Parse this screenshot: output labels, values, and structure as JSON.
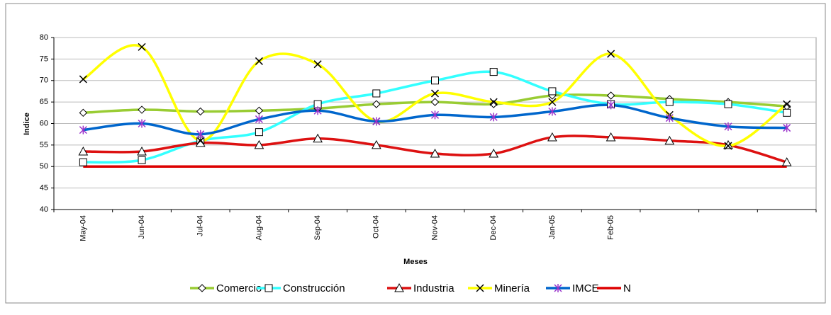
{
  "chart_data": {
    "type": "line",
    "x_label": "Meses",
    "y_label": "Indice",
    "categories": [
      "May-04",
      "Jun-04",
      "Jul-04",
      "Aug-04",
      "Sep-04",
      "Oct-04",
      "Nov-04",
      "Dec-04",
      "Jan-05",
      "Feb-05",
      null,
      null,
      null
    ],
    "ylim": [
      40,
      80
    ],
    "yticks": [
      40,
      45,
      50,
      55,
      60,
      65,
      70,
      75,
      80
    ],
    "grid": true,
    "legend": "bottom",
    "series": [
      {
        "name": "Comercio",
        "color": "#99cc33",
        "marker": "diamond",
        "values": [
          62.5,
          63.2,
          62.8,
          63,
          63.5,
          64.5,
          65,
          64.5,
          66.5,
          66.5,
          65.7,
          65,
          64
        ]
      },
      {
        "name": "Construcción",
        "color": "#33ffff",
        "marker": "square",
        "values": [
          51,
          51.5,
          56,
          58,
          64.5,
          67,
          70,
          72,
          67.5,
          64.5,
          65,
          64.5,
          62.5
        ]
      },
      {
        "name": "Industria",
        "color": "#dd1111",
        "marker": "triangle",
        "values": [
          53.5,
          53.5,
          55.5,
          55,
          56.5,
          55,
          53,
          53,
          56.8,
          56.8,
          56,
          55,
          51
        ]
      },
      {
        "name": "Minería",
        "color": "#ffff00",
        "marker": "x",
        "values": [
          70.3,
          77.8,
          56,
          74.5,
          73.8,
          60.5,
          67,
          65,
          65,
          76.2,
          62,
          54.8,
          64.5
        ]
      },
      {
        "name": "IMCE",
        "color": "#0066cc",
        "marker": "star",
        "values": [
          58.5,
          60,
          57.5,
          61,
          63,
          60.5,
          62,
          61.5,
          62.8,
          64.3,
          61.3,
          59.3,
          59
        ]
      },
      {
        "name": "N",
        "color": "#dd0000",
        "marker": "none",
        "values": [
          50,
          50,
          50,
          50,
          50,
          50,
          50,
          50,
          50,
          50,
          50,
          50,
          50
        ]
      }
    ]
  }
}
